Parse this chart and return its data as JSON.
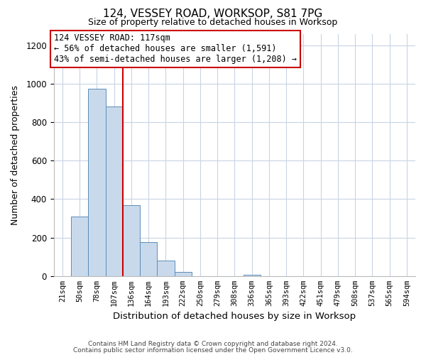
{
  "title": "124, VESSEY ROAD, WORKSOP, S81 7PG",
  "subtitle": "Size of property relative to detached houses in Worksop",
  "xlabel": "Distribution of detached houses by size in Worksop",
  "ylabel": "Number of detached properties",
  "bin_labels": [
    "21sqm",
    "50sqm",
    "78sqm",
    "107sqm",
    "136sqm",
    "164sqm",
    "193sqm",
    "222sqm",
    "250sqm",
    "279sqm",
    "308sqm",
    "336sqm",
    "365sqm",
    "393sqm",
    "422sqm",
    "451sqm",
    "479sqm",
    "508sqm",
    "537sqm",
    "565sqm",
    "594sqm"
  ],
  "bar_values": [
    0,
    310,
    975,
    880,
    370,
    175,
    80,
    20,
    0,
    0,
    0,
    5,
    0,
    0,
    0,
    0,
    0,
    0,
    0,
    0,
    0
  ],
  "bar_color": "#c9d9ec",
  "bar_edge_color": "#5b8db8",
  "property_line_color": "#cc0000",
  "property_line_x": 3.5,
  "annotation_title": "124 VESSEY ROAD: 117sqm",
  "annotation_line1": "← 56% of detached houses are smaller (1,591)",
  "annotation_line2": "43% of semi-detached houses are larger (1,208) →",
  "annotation_box_color": "#ffffff",
  "annotation_box_edge_color": "#cc0000",
  "ylim": [
    0,
    1260
  ],
  "yticks": [
    0,
    200,
    400,
    600,
    800,
    1000,
    1200
  ],
  "footer1": "Contains HM Land Registry data © Crown copyright and database right 2024.",
  "footer2": "Contains public sector information licensed under the Open Government Licence v3.0.",
  "bg_color": "#ffffff",
  "grid_color": "#c8d4e3"
}
